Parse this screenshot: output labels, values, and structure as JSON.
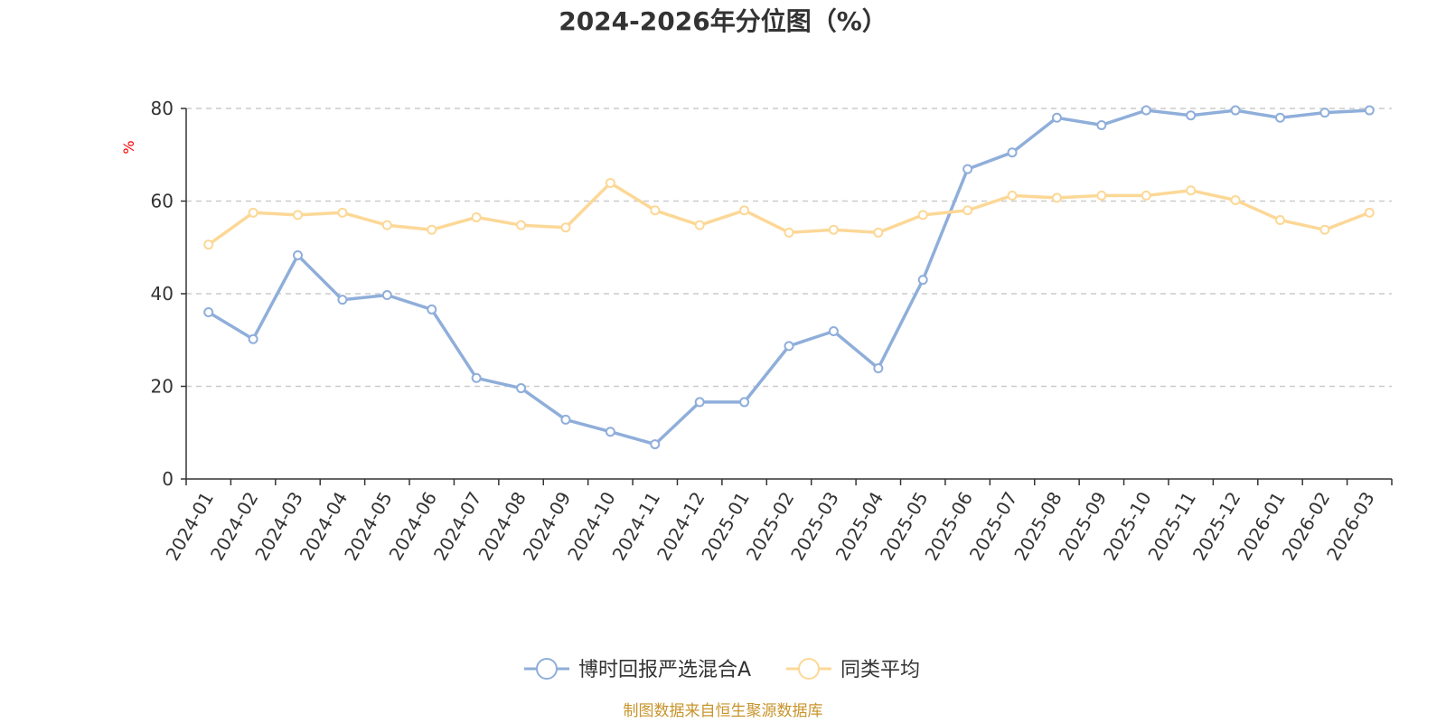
{
  "chart_data": {
    "type": "line",
    "title": "2024-2026年分位图（%）",
    "ylabel": "%",
    "xlabel": "",
    "ylim": [
      0,
      80
    ],
    "yticks": [
      0,
      20,
      40,
      60,
      80
    ],
    "grid": true,
    "legend_position": "bottom",
    "categories": [
      "2024-01",
      "2024-02",
      "2024-03",
      "2024-04",
      "2024-05",
      "2024-06",
      "2024-07",
      "2024-08",
      "2024-09",
      "2024-10",
      "2024-11",
      "2024-12",
      "2025-01",
      "2025-02",
      "2025-03",
      "2025-04",
      "2025-05",
      "2025-06",
      "2025-07",
      "2025-08",
      "2025-09",
      "2025-10",
      "2025-11",
      "2025-12",
      "2026-01",
      "2026-02",
      "2026-03"
    ],
    "series": [
      {
        "name": "博时回报严选混合A",
        "color": "#8FAEDA",
        "values": [
          36.0,
          30.2,
          48.3,
          38.7,
          39.7,
          36.6,
          21.8,
          19.6,
          12.8,
          10.2,
          7.5,
          16.6,
          16.6,
          28.7,
          31.9,
          23.9,
          43.0,
          66.9,
          70.5,
          78.0,
          76.4,
          79.6,
          78.5,
          79.6,
          78.0,
          79.1,
          79.6
        ]
      },
      {
        "name": "同类平均",
        "color": "#FCD897",
        "values": [
          50.6,
          57.5,
          57.0,
          57.5,
          54.8,
          53.8,
          56.5,
          54.8,
          54.3,
          63.9,
          58.0,
          54.8,
          58.0,
          53.2,
          53.8,
          53.2,
          57.0,
          58.0,
          61.2,
          60.7,
          61.2,
          61.2,
          62.3,
          60.2,
          55.9,
          53.8,
          57.5
        ]
      }
    ],
    "source": "制图数据来自恒生聚源数据库",
    "colors": {
      "axis": "#333333",
      "grid": "#cccccc",
      "unit": "#ff0000",
      "source": "#C8942C"
    }
  }
}
